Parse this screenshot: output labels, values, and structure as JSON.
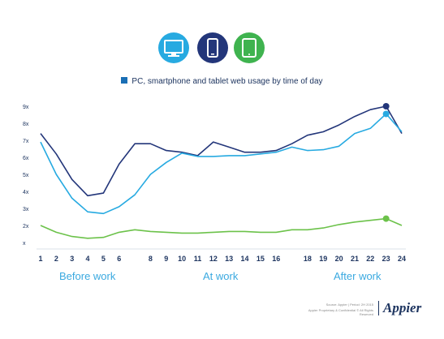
{
  "icons": [
    {
      "name": "desktop-icon",
      "color": "#27aae1"
    },
    {
      "name": "smartphone-icon",
      "color": "#23367a"
    },
    {
      "name": "tablet-icon",
      "color": "#3fb34f"
    }
  ],
  "legend_text": "PC, smartphone and tablet web usage by time of day",
  "legend_color": "#1a6fb5",
  "groups": [
    "Before work",
    "At work",
    "After work"
  ],
  "footer": {
    "source": "Source: Appier | Period: 2H 2015",
    "rights": "Appier Proprietary & Confidential © All Rights Reserved"
  },
  "brand": "Appier",
  "chart_data": {
    "type": "line",
    "x": [
      1,
      2,
      3,
      4,
      5,
      6,
      7,
      8,
      9,
      10,
      11,
      12,
      13,
      14,
      15,
      16,
      17,
      18,
      19,
      20,
      21,
      22,
      23,
      24
    ],
    "x_tick_labels": [
      "1",
      "2",
      "3",
      "4",
      "5",
      "6",
      "",
      "8",
      "9",
      "10",
      "11",
      "12",
      "13",
      "14",
      "15",
      "16",
      "",
      "18",
      "19",
      "20",
      "21",
      "22",
      "23",
      "24"
    ],
    "y_tick_labels": [
      "x",
      "2x",
      "3x",
      "4x",
      "5x",
      "6x",
      "7x",
      "8x",
      "9x"
    ],
    "ylim": [
      1,
      9
    ],
    "series": [
      {
        "color": "#23367a",
        "values": [
          7.4,
          6.2,
          4.7,
          3.75,
          3.9,
          5.6,
          6.8,
          6.8,
          6.4,
          6.3,
          6.1,
          6.9,
          6.6,
          6.3,
          6.3,
          6.4,
          6.8,
          7.3,
          7.5,
          7.9,
          8.4,
          8.8,
          9.0,
          7.4
        ],
        "marker_at": 23
      },
      {
        "color": "#27aae1",
        "values": [
          6.9,
          5.0,
          3.6,
          2.8,
          2.7,
          3.1,
          3.8,
          5.0,
          5.7,
          6.25,
          6.05,
          6.05,
          6.1,
          6.1,
          6.2,
          6.3,
          6.6,
          6.4,
          6.45,
          6.65,
          7.4,
          7.7,
          8.55,
          7.5
        ],
        "marker_at": 23
      },
      {
        "color": "#6cc24a",
        "values": [
          2.0,
          1.6,
          1.35,
          1.25,
          1.3,
          1.6,
          1.75,
          1.65,
          1.6,
          1.55,
          1.55,
          1.6,
          1.65,
          1.65,
          1.6,
          1.6,
          1.75,
          1.75,
          1.85,
          2.05,
          2.2,
          2.3,
          2.4,
          2.0
        ],
        "marker_at": 23
      }
    ]
  }
}
